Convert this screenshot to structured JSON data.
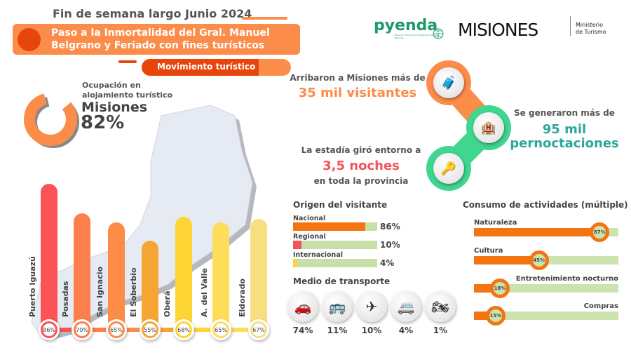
{
  "header": {
    "title": "Fin de semana largo Junio 2024",
    "banner": "Paso a la Inmortalidad del Gral. Manuel Belgrano y Feriado con fines turísticos",
    "section": "Movimiento turístico"
  },
  "logos": {
    "pyenda": "pyenda",
    "pyenda_sub": "Base de Información Turística Provincia de Misiones",
    "misiones": "MISIONES",
    "ministerio": "Ministerio de Turismo"
  },
  "occupancy": {
    "label": "Ocupación en alojamiento turístico",
    "place": "Misiones",
    "value": "82%",
    "fraction": 0.82,
    "color": "#fb8c4a"
  },
  "chart_data": {
    "type": "bar",
    "categories": [
      "Puerto Iguazú",
      "Posadas",
      "San Ignacio",
      "El Soberbio",
      "Oberá",
      "A. del Valle",
      "Eldorado"
    ],
    "values": [
      86,
      70,
      65,
      55,
      68,
      65,
      67
    ],
    "labels": [
      "86%",
      "70%",
      "65%",
      "55%",
      "68%",
      "65%",
      "67%"
    ],
    "colors": [
      "#fb5355",
      "#fd7f4e",
      "#fd8c46",
      "#f7a532",
      "#fdd535",
      "#fedd5b",
      "#f7df7f"
    ]
  },
  "highlights": {
    "visitors_pre": "Arribaron a Misiones más de",
    "visitors": "35 mil visitantes",
    "nights_pre": "Se generaron más de",
    "nights_1": "95 mil",
    "nights_2": "pernoctaciones",
    "stay_pre": "La estadía giró entorno a",
    "stay": "3,5 noches",
    "stay_post": "en toda la provincia",
    "icons": [
      "luggage-plane-icon",
      "hotel-icon",
      "key-shield-icon"
    ],
    "colors": {
      "orange": "#fb8c4a",
      "green": "#3fd68f",
      "teal": "#2aa897",
      "red": "#f2545b"
    }
  },
  "origin": {
    "title": "Origen del visitante",
    "items": [
      {
        "label": "Nacional",
        "value": 86,
        "text": "86%",
        "color": "#f57412"
      },
      {
        "label": "Regional",
        "value": 10,
        "text": "10%",
        "color": "#f2545b"
      },
      {
        "label": "Internacional",
        "value": 4,
        "text": "4%",
        "color": "#fdd535"
      }
    ]
  },
  "transport": {
    "title": "Medio de transporte",
    "items": [
      {
        "icon": "car-icon",
        "glyph": "🚗",
        "text": "74%"
      },
      {
        "icon": "bus-icon",
        "glyph": "🚌",
        "text": "11%"
      },
      {
        "icon": "airplane-icon",
        "glyph": "✈",
        "text": "10%"
      },
      {
        "icon": "motorhome-icon",
        "glyph": "🚐",
        "text": "4%"
      },
      {
        "icon": "motorcycle-icon",
        "glyph": "🏍",
        "text": "1%"
      }
    ]
  },
  "activities": {
    "title": "Consumo de actividades (múltiple)",
    "items": [
      {
        "label": "Naturaleza",
        "value": 87,
        "text": "87%"
      },
      {
        "label": "Cultura",
        "value": 45,
        "text": "45%"
      },
      {
        "label": "Entretenimiento nocturno",
        "value": 18,
        "text": "18%"
      },
      {
        "label": "Compras",
        "value": 15,
        "text": "15%"
      }
    ]
  }
}
